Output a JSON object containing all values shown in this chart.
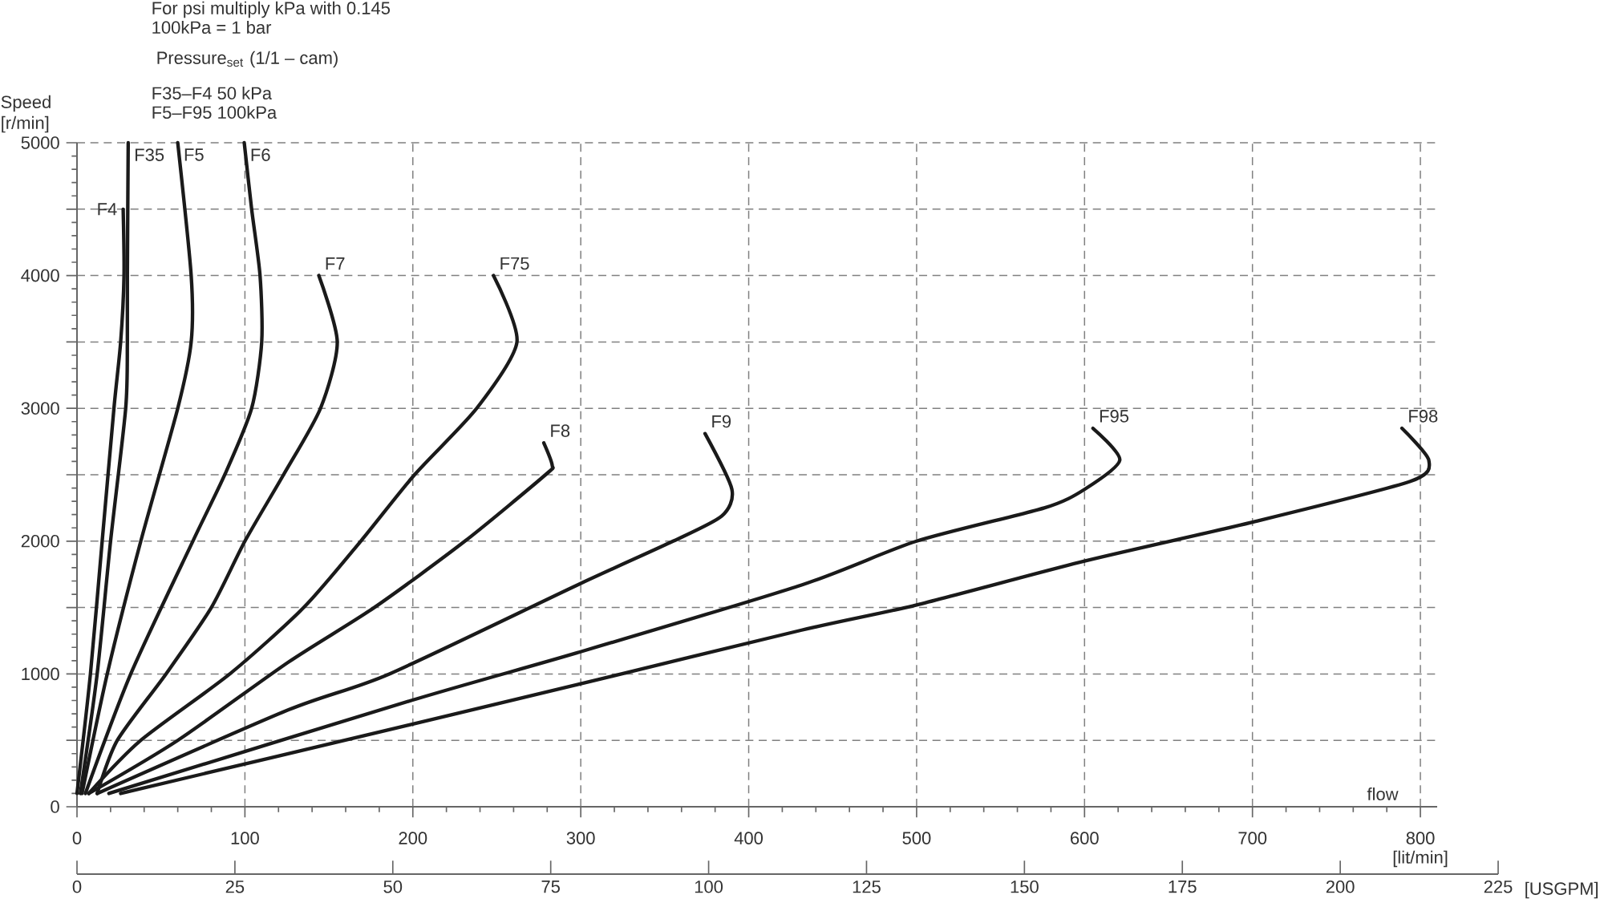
{
  "chart_data": {
    "type": "line",
    "ylabel": "Speed [r/min]",
    "xlabel": "[lit/min]",
    "x2label": "[USGPM]",
    "annotations": [
      "For psi multiply kPa with 0.145",
      "100kPa = 1 bar",
      "Pressure$_{set}$ (1/1 – cam)",
      "F35–F4    50 kPa",
      "F5–F95  100kPa",
      "flow"
    ],
    "xlim": [
      0,
      810
    ],
    "ylim": [
      0,
      5000
    ],
    "xticks": [
      0,
      100,
      200,
      300,
      400,
      500,
      600,
      700,
      800
    ],
    "yticks": [
      0,
      {
        "value": 500,
        "label": null
      },
      1000,
      {
        "value": 1500,
        "label": null
      },
      2000,
      {
        "value": 2500,
        "label": null
      },
      3000,
      {
        "value": 3500,
        "label": null
      },
      4000,
      {
        "value": 4500,
        "label": null
      },
      5000
    ],
    "x2lim": [
      0,
      225
    ],
    "x2ticks": [
      0,
      25,
      50,
      75,
      100,
      125,
      150,
      175,
      200,
      225
    ],
    "grid": true,
    "series": [
      {
        "name": "F4",
        "color": "#1a1a1a",
        "x": [
          0,
          8,
          15,
          22,
          26,
          28,
          27.5
        ],
        "values": [
          100,
          1000,
          2000,
          3000,
          3500,
          4000,
          4500
        ]
      },
      {
        "name": "F35",
        "color": "#1a1a1a",
        "x": [
          2,
          12,
          20,
          29,
          30,
          30,
          30.5
        ],
        "values": [
          100,
          1000,
          2000,
          3000,
          3500,
          4000,
          5000
        ]
      },
      {
        "name": "F5",
        "color": "#1a1a1a",
        "x": [
          3,
          18,
          38,
          60,
          68,
          68,
          60
        ],
        "values": [
          100,
          1000,
          2000,
          3000,
          3500,
          4000,
          5000
        ]
      },
      {
        "name": "F6",
        "color": "#1a1a1a",
        "x": [
          5,
          32,
          69,
          88,
          104,
          110,
          109,
          104,
          99.6
        ],
        "values": [
          100,
          1000,
          2000,
          2500,
          3000,
          3500,
          4000,
          4500,
          5000
        ]
      },
      {
        "name": "F7",
        "color": "#1a1a1a",
        "x": [
          12,
          24,
          53,
          80,
          100,
          123,
          145,
          155,
          144
        ],
        "values": [
          100,
          500,
          1000,
          1500,
          2000,
          2500,
          3000,
          3500,
          4000
        ]
      },
      {
        "name": "F75",
        "color": "#1a1a1a",
        "x": [
          7,
          38,
          91,
          135,
          169,
          201,
          238,
          262,
          248
        ],
        "values": [
          100,
          500,
          1000,
          1500,
          2000,
          2500,
          3000,
          3500,
          4000
        ]
      },
      {
        "name": "F8",
        "color": "#1a1a1a",
        "x": [
          7,
          60,
          126,
          177,
          231,
          279,
          283,
          278
        ],
        "values": [
          100,
          500,
          1090,
          1500,
          2000,
          2500,
          2570,
          2740
        ]
      },
      {
        "name": "F9",
        "color": "#1a1a1a",
        "x": [
          12,
          126,
          186,
          298,
          355,
          384,
          390,
          374
        ],
        "values": [
          100,
          730,
          1000,
          1670,
          2000,
          2190,
          2390,
          2810
        ]
      },
      {
        "name": "F95",
        "color": "#1a1a1a",
        "x": [
          19,
          199,
          298,
          431.5,
          500,
          576,
          600,
          621,
          605
        ],
        "values": [
          100,
          800,
          1160,
          1670,
          2000,
          2250,
          2390,
          2610,
          2850
        ]
      },
      {
        "name": "F98",
        "color": "#1a1a1a",
        "x": [
          26,
          199,
          298,
          431.5,
          500,
          600,
          699,
          794,
          805,
          789
        ],
        "values": [
          100,
          620,
          920,
          1330,
          1520,
          1850,
          2140,
          2450,
          2610,
          2850
        ]
      }
    ]
  }
}
